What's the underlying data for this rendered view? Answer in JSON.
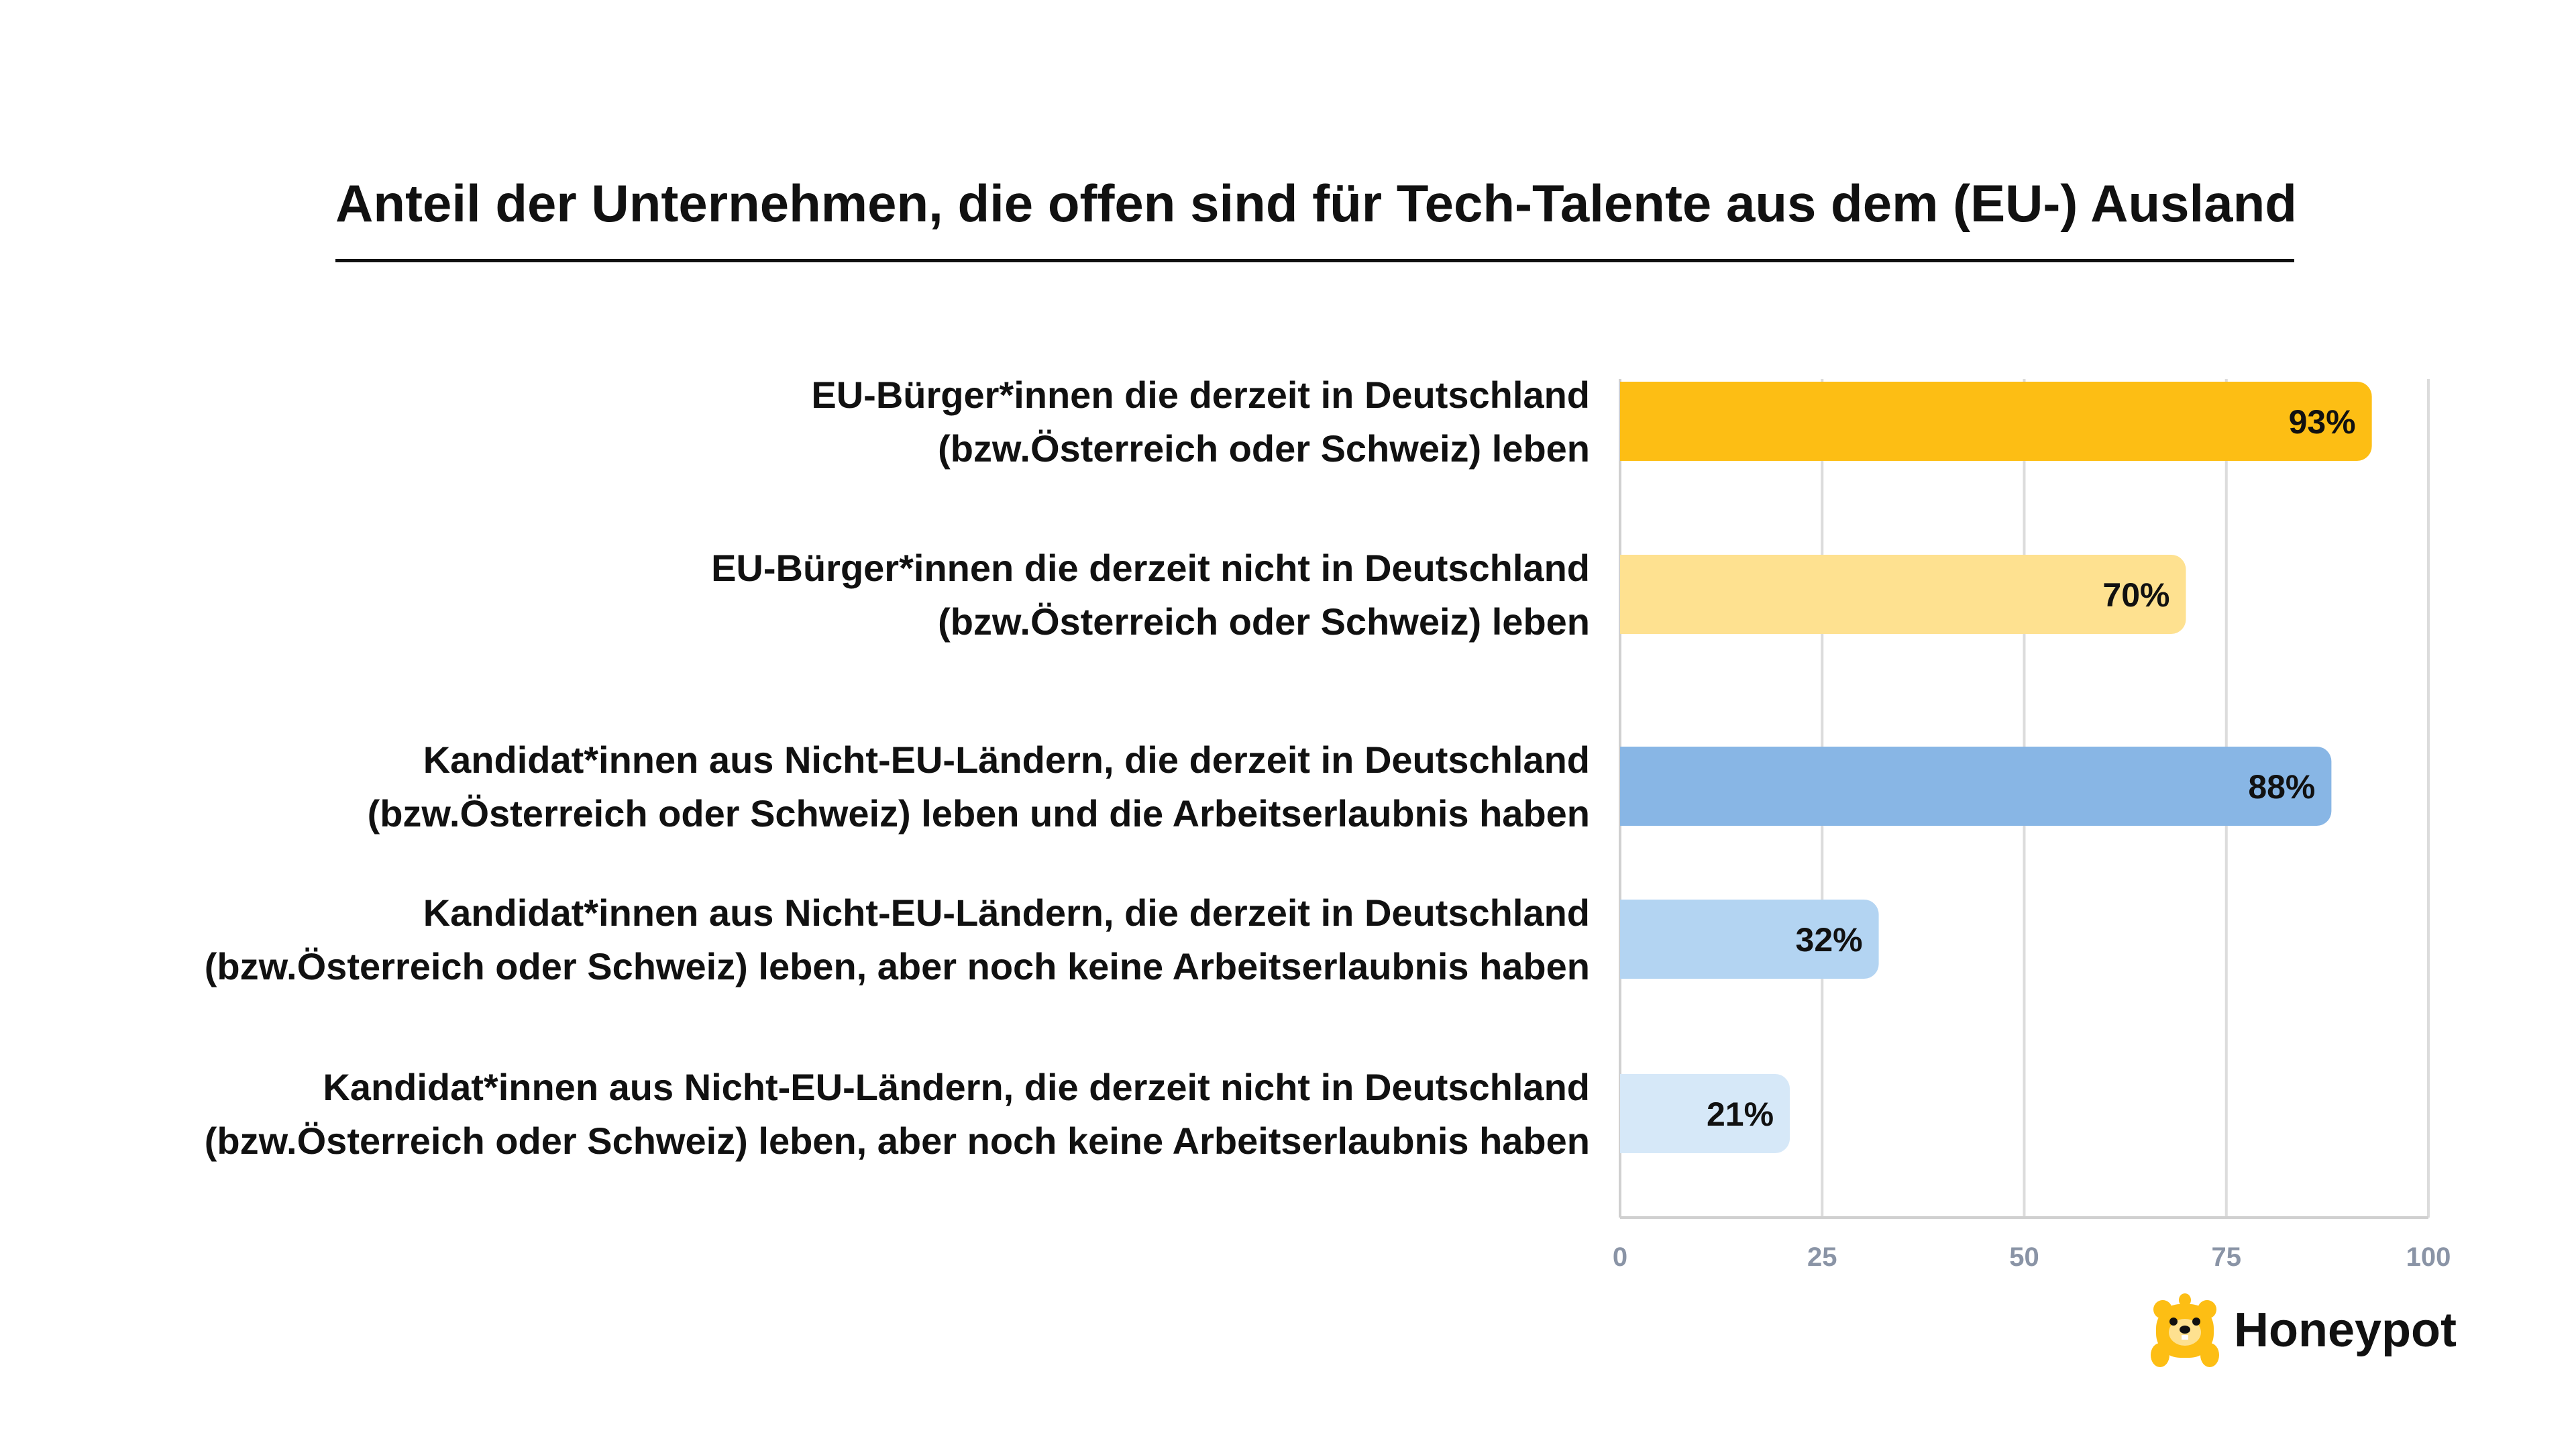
{
  "chart_data": {
    "type": "bar",
    "orientation": "horizontal",
    "title": "Anteil der Unternehmen, die offen sind für Tech-Talente aus dem (EU-) Ausland",
    "categories": [
      [
        "EU-Bürger*innen die derzeit in Deutschland",
        "(bzw.Österreich oder Schweiz) leben"
      ],
      [
        "EU-Bürger*innen die derzeit nicht in Deutschland",
        "(bzw.Österreich oder Schweiz) leben"
      ],
      [
        "Kandidat*innen aus Nicht-EU-Ländern, die derzeit in Deutschland",
        "(bzw.Österreich oder Schweiz) leben und die Arbeitserlaubnis haben"
      ],
      [
        "Kandidat*innen aus Nicht-EU-Ländern, die derzeit in Deutschland",
        "(bzw.Österreich oder Schweiz) leben, aber noch keine Arbeitserlaubnis haben"
      ],
      [
        "Kandidat*innen aus Nicht-EU-Ländern, die derzeit nicht in Deutschland",
        "(bzw.Österreich oder Schweiz) leben, aber noch keine Arbeitserlaubnis haben"
      ]
    ],
    "values": [
      93,
      70,
      88,
      32,
      21
    ],
    "value_labels": [
      "93%",
      "70%",
      "88%",
      "32%",
      "21%"
    ],
    "bar_colors": [
      "#FDBE14",
      "#FEE190",
      "#88B6E5",
      "#B3D4F2",
      "#D6E8F8"
    ],
    "xlim": [
      0,
      100
    ],
    "xticks": [
      0,
      25,
      50,
      75,
      100
    ],
    "xtick_labels": [
      "0",
      "25",
      "50",
      "75",
      "100"
    ],
    "grid": true,
    "legend": "none"
  },
  "logo": {
    "text": "Honeypot",
    "icon": "bear-icon",
    "color": "#FDBE14"
  }
}
